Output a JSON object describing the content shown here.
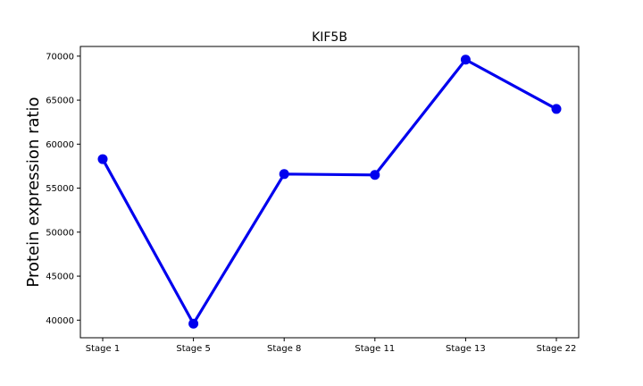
{
  "chart_data": {
    "type": "line",
    "title": "KIF5B",
    "xlabel": "",
    "ylabel": "Protein expression ratio",
    "categories": [
      "Stage 1",
      "Stage 5",
      "Stage 8",
      "Stage 11",
      "Stage 13",
      "Stage 22"
    ],
    "series": [
      {
        "values": [
          58300,
          39600,
          56600,
          56500,
          69600,
          64000
        ],
        "color": "#0000ee"
      }
    ],
    "yticks": [
      40000,
      45000,
      50000,
      55000,
      60000,
      65000,
      70000
    ],
    "ytick_labels": [
      "40000",
      "45000",
      "50000",
      "55000",
      "60000",
      "65000",
      "70000"
    ],
    "ylim": [
      38000,
      71100
    ],
    "grid": false,
    "legend": "none"
  }
}
